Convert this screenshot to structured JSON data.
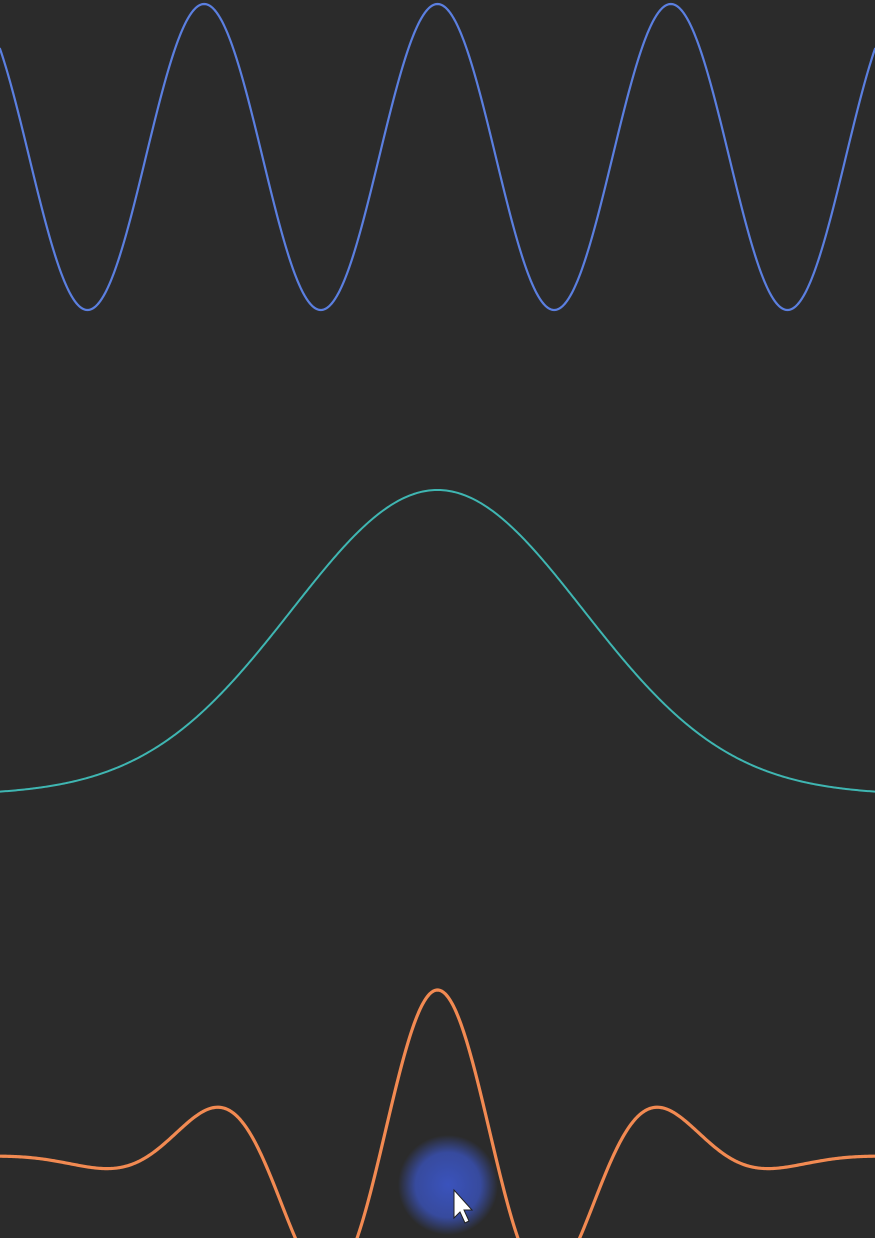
{
  "background_color": "#2b2b2b",
  "chart_data": [
    {
      "type": "line",
      "x": [
        -3,
        3
      ],
      "series": [
        {
          "function": "cosine",
          "amplitude": 1,
          "cycles_visible": 3.75,
          "color": "#5b7fe0"
        }
      ],
      "xlim": [
        -3,
        3
      ],
      "ylim": [
        -1,
        1
      ],
      "grid": false,
      "axes_visible": false
    },
    {
      "type": "line",
      "x": [
        -3,
        3
      ],
      "series": [
        {
          "function": "gaussian",
          "amplitude": 1,
          "baseline": 0,
          "color": "#3fb6b2"
        }
      ],
      "xlim": [
        -3,
        3
      ],
      "ylim": [
        0,
        1
      ],
      "grid": false,
      "axes_visible": false
    },
    {
      "type": "line",
      "x": [
        -3,
        3
      ],
      "series": [
        {
          "function": "product_of_cosine_and_gaussian",
          "color": "#f28a52"
        }
      ],
      "xlim": [
        -3,
        3
      ],
      "ylim": [
        -1,
        1
      ],
      "grid": false,
      "axes_visible": false
    }
  ],
  "cursor": {
    "icon": "mouse-pointer-icon",
    "highlight_color": "#3b55c4"
  }
}
